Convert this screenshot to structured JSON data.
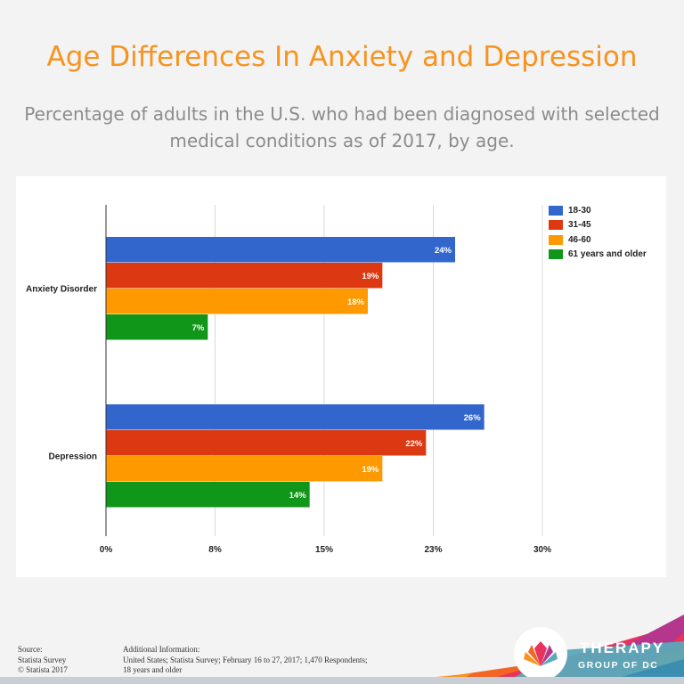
{
  "title": "Age Differences In Anxiety and Depression",
  "subtitle": "Percentage of adults in the U.S. who had been diagnosed with selected medical conditions as of 2017, by age.",
  "chart_data": {
    "type": "bar",
    "orientation": "horizontal",
    "categories": [
      "Anxiety Disorder",
      "Depression"
    ],
    "series": [
      {
        "name": "18-30",
        "color": "#3366cc",
        "values": [
          24,
          26
        ],
        "labels": [
          "24%",
          "26%"
        ]
      },
      {
        "name": "31-45",
        "color": "#dc3912",
        "values": [
          19,
          22
        ],
        "labels": [
          "19%",
          "22%"
        ]
      },
      {
        "name": "46-60",
        "color": "#ff9900",
        "values": [
          18,
          19
        ],
        "labels": [
          "18%",
          "19%"
        ]
      },
      {
        "name": "61 years and older",
        "color": "#109618",
        "values": [
          7,
          14
        ],
        "labels": [
          "7%",
          "14%"
        ]
      }
    ],
    "xlim": [
      0,
      30
    ],
    "xticks": [
      0,
      7.5,
      15,
      22.5,
      30
    ],
    "xtick_labels": [
      "0%",
      "8%",
      "15%",
      "23%",
      "30%"
    ],
    "grid": true,
    "legend": "top-right"
  },
  "footer": {
    "source_lines": [
      "Source:",
      "Statista Survey",
      "© Statista 2017"
    ],
    "info_lines": [
      "Additional Information:",
      "United States; Statista Survey; February 16 to 27, 2017; 1,470 Respondents;",
      "18 years and older"
    ]
  },
  "brand": {
    "line1": "THERAPY",
    "line2": "GROUP OF DC"
  }
}
